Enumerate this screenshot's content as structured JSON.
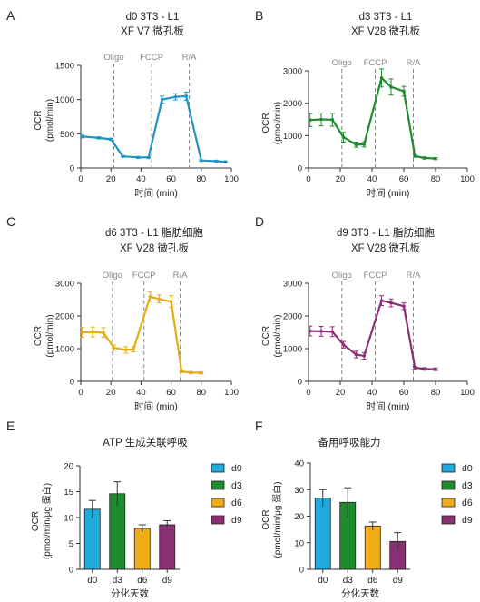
{
  "chart_data": [
    {
      "panel_label": "A",
      "type": "line",
      "title": [
        "d0 3T3 - L1",
        "XF V7 微孔板"
      ],
      "xlabel": "时间 (min)",
      "ylabel": [
        "OCR",
        "(pmol/min)"
      ],
      "xlim": [
        0,
        100
      ],
      "ylim": [
        0,
        1500
      ],
      "xticks": [
        0,
        20,
        40,
        60,
        80,
        100
      ],
      "yticks": [
        0,
        500,
        1000,
        1500
      ],
      "color": "#1f94c4",
      "series": [
        {
          "x": [
            1,
            12,
            20,
            28,
            38,
            45,
            54,
            63,
            70,
            80,
            90,
            96
          ],
          "y": [
            460,
            440,
            420,
            170,
            155,
            155,
            1000,
            1040,
            1050,
            110,
            100,
            90
          ],
          "err": [
            20,
            15,
            15,
            10,
            10,
            10,
            50,
            45,
            60,
            10,
            10,
            10
          ]
        }
      ],
      "annotations": [
        {
          "label": "Oligo",
          "x": 22
        },
        {
          "label": "FCCP",
          "x": 47
        },
        {
          "label": "R/A",
          "x": 72
        }
      ]
    },
    {
      "panel_label": "B",
      "type": "line",
      "title": [
        "d3 3T3 - L1",
        "XF V28 微孔板"
      ],
      "xlabel": "时间 (min)",
      "ylabel": [
        "OCR",
        "(pmol/min)"
      ],
      "xlim": [
        0,
        100
      ],
      "ylim": [
        0,
        3000
      ],
      "xticks": [
        0,
        20,
        40,
        60,
        80,
        100
      ],
      "yticks": [
        0,
        1000,
        2000,
        3000
      ],
      "color": "#1f8a2e",
      "series": [
        {
          "x": [
            1,
            8,
            15,
            22,
            30,
            35,
            46,
            52,
            60,
            67,
            73,
            80
          ],
          "y": [
            1480,
            1500,
            1490,
            950,
            720,
            730,
            2780,
            2500,
            2370,
            370,
            310,
            290
          ],
          "err": [
            200,
            200,
            200,
            150,
            80,
            80,
            280,
            250,
            150,
            40,
            30,
            30
          ]
        }
      ],
      "annotations": [
        {
          "label": "Oligo",
          "x": 21
        },
        {
          "label": "FCCP",
          "x": 42
        },
        {
          "label": "R/A",
          "x": 66
        }
      ]
    },
    {
      "panel_label": "C",
      "type": "line",
      "title": [
        "d6 3T3 - L1 脂肪细胞",
        "XF V28 微孔板"
      ],
      "xlabel": "时间 (min)",
      "ylabel": [
        "OCR",
        "(pmol/min)"
      ],
      "xlim": [
        0,
        100
      ],
      "ylim": [
        0,
        3000
      ],
      "xticks": [
        0,
        20,
        40,
        60,
        80,
        100
      ],
      "yticks": [
        0,
        1000,
        2000,
        3000
      ],
      "color": "#e5ac16",
      "series": [
        {
          "x": [
            1,
            8,
            15,
            22,
            30,
            35,
            46,
            52,
            60,
            67,
            73,
            80
          ],
          "y": [
            1500,
            1510,
            1490,
            1030,
            960,
            980,
            2590,
            2520,
            2440,
            300,
            270,
            260
          ],
          "err": [
            150,
            150,
            150,
            80,
            100,
            80,
            150,
            120,
            180,
            30,
            30,
            30
          ]
        }
      ],
      "annotations": [
        {
          "label": "Oligo",
          "x": 21
        },
        {
          "label": "FCCP",
          "x": 42
        },
        {
          "label": "R/A",
          "x": 66
        }
      ]
    },
    {
      "panel_label": "D",
      "type": "line",
      "title": [
        "d9 3T3 - L1 脂肪细胞",
        "XF V28 微孔板"
      ],
      "xlabel": "时间 (min)",
      "ylabel": [
        "OCR",
        "(pmol/min)"
      ],
      "xlim": [
        0,
        100
      ],
      "ylim": [
        0,
        3000
      ],
      "xticks": [
        0,
        20,
        40,
        60,
        80,
        100
      ],
      "yticks": [
        0,
        1000,
        2000,
        3000
      ],
      "color": "#8c2e74",
      "series": [
        {
          "x": [
            1,
            8,
            15,
            22,
            30,
            35,
            46,
            52,
            60,
            67,
            73,
            80
          ],
          "y": [
            1540,
            1530,
            1520,
            1120,
            820,
            780,
            2470,
            2400,
            2300,
            420,
            380,
            370
          ],
          "err": [
            150,
            150,
            150,
            100,
            100,
            100,
            150,
            120,
            100,
            40,
            40,
            40
          ]
        }
      ],
      "annotations": [
        {
          "label": "Oligo",
          "x": 21
        },
        {
          "label": "FCCP",
          "x": 42
        },
        {
          "label": "R/A",
          "x": 66
        }
      ]
    },
    {
      "panel_label": "E",
      "type": "bar",
      "title": "ATP 生成关联呼吸",
      "xlabel": "分化天数",
      "ylabel": [
        "OCR",
        "(pmol/min/μg 蛋白)"
      ],
      "ylim": [
        0,
        20
      ],
      "yticks": [
        0,
        5,
        10,
        15,
        20
      ],
      "categories": [
        "d0",
        "d3",
        "d6",
        "d9"
      ],
      "values": [
        11.6,
        14.6,
        7.9,
        8.6
      ],
      "err": [
        1.7,
        2.3,
        0.7,
        0.8
      ],
      "colors": [
        "#1fa9dc",
        "#1f8a2e",
        "#efab18",
        "#8c2e74"
      ],
      "legend": [
        "d0",
        "d3",
        "d6",
        "d9"
      ],
      "legend_position": "right"
    },
    {
      "panel_label": "F",
      "type": "bar",
      "title": "备用呼吸能力",
      "xlabel": "分化天数",
      "ylabel": [
        "OCR",
        "(pmol/min/μg 蛋白)"
      ],
      "ylim": [
        0,
        40
      ],
      "yticks": [
        0,
        10,
        20,
        30,
        40
      ],
      "categories": [
        "d0",
        "d3",
        "d6",
        "d9"
      ],
      "values": [
        26.8,
        25.2,
        16.3,
        10.5
      ],
      "err": [
        3.2,
        5.5,
        1.5,
        3.3
      ],
      "colors": [
        "#1fa9dc",
        "#1f8a2e",
        "#efab18",
        "#8c2e74"
      ],
      "legend": [
        "d0",
        "d3",
        "d6",
        "d9"
      ],
      "legend_position": "right"
    }
  ]
}
